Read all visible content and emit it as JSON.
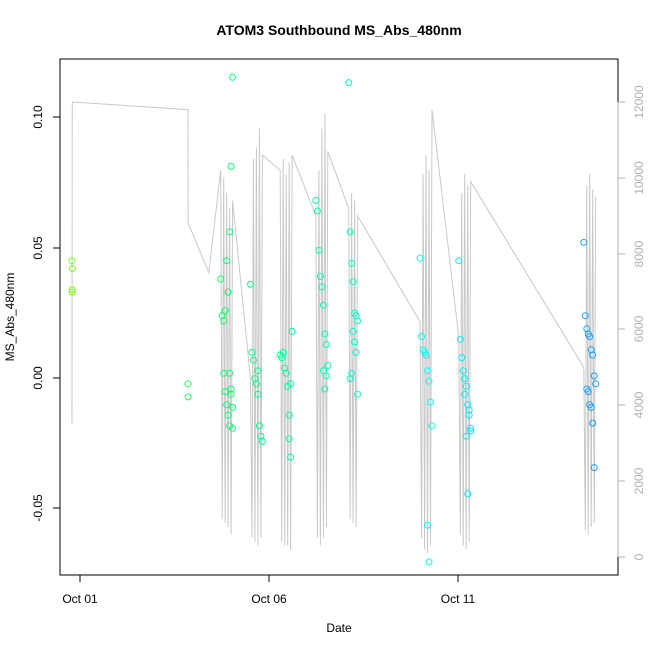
{
  "chart_data": {
    "type": "scatter",
    "title": "ATOM3 Southbound MS_Abs_480nm",
    "xlabel": "Date",
    "ylabel": "MS_Abs_480nm",
    "x_ticks": [
      "Oct 01",
      "Oct 06",
      "Oct 11"
    ],
    "y_ticks": [
      "-0.05",
      "0.00",
      "0.05",
      "0.10"
    ],
    "y_right_ticks": [
      "0",
      "2000",
      "4000",
      "6000",
      "8000",
      "10000",
      "12000"
    ],
    "xlim": [
      "2016-09-30T16:00",
      "2016-10-16T07:00"
    ],
    "ylim": [
      -0.075,
      0.122
    ],
    "ylim_right": [
      0,
      12000
    ],
    "grid": false,
    "colors": {
      "depth_line": "#c8c8c8",
      "axis": "#000000",
      "right_axis": "#b0b0b0",
      "point_gradient": [
        "#7fff00",
        "#00ff7f",
        "#00ffff",
        "#1e90ff"
      ]
    },
    "depth_series": {
      "name": "",
      "points": [
        [
          "2016-10-01T00:00",
          4100
        ],
        [
          "2016-10-01T00:05",
          3500
        ],
        [
          "2016-10-01T00:10",
          11500
        ],
        [
          "2016-10-01T00:15",
          12000
        ],
        [
          "2016-10-04T06:00",
          11800
        ],
        [
          "2016-10-04T06:10",
          8800
        ],
        [
          "2016-10-04T20:00",
          7500
        ],
        [
          "2016-10-05T04:00",
          10200
        ],
        [
          "2016-10-05T05:00",
          1000
        ],
        [
          "2016-10-05T06:00",
          10000
        ],
        [
          "2016-10-05T07:00",
          900
        ],
        [
          "2016-10-05T08:00",
          9600
        ],
        [
          "2016-10-05T09:00",
          800
        ],
        [
          "2016-10-05T10:00",
          9200
        ],
        [
          "2016-10-05T11:00",
          600
        ],
        [
          "2016-10-05T12:00",
          9400
        ],
        [
          "2016-10-06T00:00",
          4700
        ],
        [
          "2016-10-06T01:00",
          500
        ],
        [
          "2016-10-06T02:00",
          10500
        ],
        [
          "2016-10-06T03:00",
          400
        ],
        [
          "2016-10-06T04:00",
          10800
        ],
        [
          "2016-10-06T05:00",
          300
        ],
        [
          "2016-10-06T06:00",
          11300
        ],
        [
          "2016-10-06T07:00",
          500
        ],
        [
          "2016-10-06T08:00",
          10600
        ],
        [
          "2016-10-06T20:00",
          10200
        ],
        [
          "2016-10-06T21:00",
          400
        ],
        [
          "2016-10-06T22:00",
          10500
        ],
        [
          "2016-10-06T23:00",
          300
        ],
        [
          "2016-10-07T00:00",
          10100
        ],
        [
          "2016-10-07T01:00",
          300
        ],
        [
          "2016-10-07T02:00",
          10400
        ],
        [
          "2016-10-07T03:00",
          200
        ],
        [
          "2016-10-07T04:00",
          10600
        ],
        [
          "2016-10-07T20:00",
          9000
        ],
        [
          "2016-10-07T21:00",
          500
        ],
        [
          "2016-10-07T22:00",
          10200
        ],
        [
          "2016-10-07T23:00",
          300
        ],
        [
          "2016-10-08T00:00",
          11300
        ],
        [
          "2016-10-08T01:00",
          500
        ],
        [
          "2016-10-08T02:00",
          11700
        ],
        [
          "2016-10-08T03:00",
          800
        ],
        [
          "2016-10-08T04:00",
          10700
        ],
        [
          "2016-10-08T18:00",
          9200
        ],
        [
          "2016-10-08T19:00",
          1000
        ],
        [
          "2016-10-08T20:00",
          9600
        ],
        [
          "2016-10-08T21:00",
          900
        ],
        [
          "2016-10-08T22:00",
          9400
        ],
        [
          "2016-10-08T23:00",
          800
        ],
        [
          "2016-10-09T00:00",
          9000
        ],
        [
          "2016-10-10T18:00",
          6200
        ],
        [
          "2016-10-10T19:00",
          500
        ],
        [
          "2016-10-10T20:00",
          10100
        ],
        [
          "2016-10-10T21:00",
          200
        ],
        [
          "2016-10-10T22:00",
          10600
        ],
        [
          "2016-10-10T23:00",
          100
        ],
        [
          "2016-10-11T00:00",
          10200
        ],
        [
          "2016-10-11T01:00",
          300
        ],
        [
          "2016-10-11T02:00",
          11800
        ],
        [
          "2016-10-11T20:00",
          5800
        ],
        [
          "2016-10-11T21:00",
          600
        ],
        [
          "2016-10-11T22:00",
          9600
        ],
        [
          "2016-10-11T23:00",
          300
        ],
        [
          "2016-10-12T00:00",
          10100
        ],
        [
          "2016-10-12T01:00",
          200
        ],
        [
          "2016-10-12T02:00",
          9800
        ],
        [
          "2016-10-12T03:00",
          400
        ],
        [
          "2016-10-12T04:00",
          9900
        ],
        [
          "2016-10-15T08:00",
          5000
        ],
        [
          "2016-10-15T09:00",
          700
        ],
        [
          "2016-10-15T10:00",
          9800
        ],
        [
          "2016-10-15T11:00",
          600
        ],
        [
          "2016-10-15T12:00",
          10100
        ],
        [
          "2016-10-15T13:00",
          800
        ],
        [
          "2016-10-15T14:00",
          9700
        ],
        [
          "2016-10-15T15:00",
          900
        ],
        [
          "2016-10-15T16:00",
          9500
        ]
      ]
    },
    "series": [
      {
        "name": "",
        "points": [
          [
            "2016-10-01T00:00",
            0.045
          ],
          [
            "2016-10-01T00:20",
            0.042
          ],
          [
            "2016-10-01T00:10",
            0.034
          ],
          [
            "2016-10-01T00:05",
            0.033
          ],
          [
            "2016-10-04T06:00",
            -0.002
          ],
          [
            "2016-10-04T06:10",
            -0.007
          ],
          [
            "2016-10-05T04:00",
            0.038
          ],
          [
            "2016-10-05T05:00",
            0.024
          ],
          [
            "2016-10-05T06:00",
            0.022
          ],
          [
            "2016-10-05T07:00",
            0.026
          ],
          [
            "2016-10-05T08:00",
            0.045
          ],
          [
            "2016-10-05T09:00",
            0.033
          ],
          [
            "2016-10-05T10:00",
            0.056
          ],
          [
            "2016-10-05T11:00",
            0.081
          ],
          [
            "2016-10-05T12:00",
            0.115
          ],
          [
            "2016-10-05T06:00",
            0.002
          ],
          [
            "2016-10-05T07:00",
            -0.005
          ],
          [
            "2016-10-05T08:00",
            -0.01
          ],
          [
            "2016-10-05T09:00",
            -0.014
          ],
          [
            "2016-10-05T10:00",
            -0.018
          ],
          [
            "2016-10-05T11:00",
            -0.004
          ],
          [
            "2016-10-05T12:00",
            -0.019
          ],
          [
            "2016-10-05T12:00",
            -0.011
          ],
          [
            "2016-10-05T11:00",
            -0.006
          ],
          [
            "2016-10-05T10:00",
            0.002
          ],
          [
            "2016-10-06T00:00",
            0.036
          ],
          [
            "2016-10-06T01:00",
            0.01
          ],
          [
            "2016-10-06T02:00",
            0.007
          ],
          [
            "2016-10-06T03:00",
            0.0
          ],
          [
            "2016-10-06T04:00",
            -0.002
          ],
          [
            "2016-10-06T05:00",
            -0.006
          ],
          [
            "2016-10-06T06:00",
            -0.018
          ],
          [
            "2016-10-06T07:00",
            -0.022
          ],
          [
            "2016-10-06T08:00",
            -0.024
          ],
          [
            "2016-10-06T05:00",
            0.003
          ],
          [
            "2016-10-06T20:00",
            0.009
          ],
          [
            "2016-10-06T21:00",
            0.008
          ],
          [
            "2016-10-06T22:00",
            0.01
          ],
          [
            "2016-10-06T23:00",
            0.004
          ],
          [
            "2016-10-07T00:00",
            0.002
          ],
          [
            "2016-10-07T01:00",
            -0.003
          ],
          [
            "2016-10-07T02:00",
            -0.023
          ],
          [
            "2016-10-07T03:00",
            -0.03
          ],
          [
            "2016-10-07T04:00",
            0.018
          ],
          [
            "2016-10-07T02:00",
            -0.014
          ],
          [
            "2016-10-07T03:00",
            -0.002
          ],
          [
            "2016-10-07T20:00",
            0.068
          ],
          [
            "2016-10-07T21:00",
            0.064
          ],
          [
            "2016-10-07T22:00",
            0.049
          ],
          [
            "2016-10-07T23:00",
            0.039
          ],
          [
            "2016-10-08T00:00",
            0.035
          ],
          [
            "2016-10-08T01:00",
            0.028
          ],
          [
            "2016-10-08T02:00",
            0.017
          ],
          [
            "2016-10-08T03:00",
            0.013
          ],
          [
            "2016-10-08T04:00",
            0.005
          ],
          [
            "2016-10-08T01:00",
            0.003
          ],
          [
            "2016-10-08T02:00",
            -0.004
          ],
          [
            "2016-10-08T03:00",
            0.001
          ],
          [
            "2016-10-08T18:00",
            0.113
          ],
          [
            "2016-10-08T19:00",
            0.056
          ],
          [
            "2016-10-08T20:00",
            0.044
          ],
          [
            "2016-10-08T21:00",
            0.037
          ],
          [
            "2016-10-08T22:00",
            0.025
          ],
          [
            "2016-10-08T23:00",
            0.024
          ],
          [
            "2016-10-09T00:00",
            0.022
          ],
          [
            "2016-10-08T21:00",
            0.018
          ],
          [
            "2016-10-08T22:00",
            0.014
          ],
          [
            "2016-10-08T23:00",
            0.01
          ],
          [
            "2016-10-08T20:00",
            0.002
          ],
          [
            "2016-10-08T19:00",
            0.0
          ],
          [
            "2016-10-09T00:00",
            -0.006
          ]
        ]
      },
      {
        "name": "",
        "points": [
          [
            "2016-10-10T18:00",
            0.046
          ],
          [
            "2016-10-10T19:00",
            0.016
          ],
          [
            "2016-10-10T20:00",
            0.011
          ],
          [
            "2016-10-10T21:00",
            0.01
          ],
          [
            "2016-10-10T22:00",
            0.009
          ],
          [
            "2016-10-10T23:00",
            0.003
          ],
          [
            "2016-10-11T00:00",
            -0.001
          ],
          [
            "2016-10-11T01:00",
            -0.009
          ],
          [
            "2016-10-11T02:00",
            -0.018
          ],
          [
            "2016-10-10T23:00",
            -0.056
          ],
          [
            "2016-10-11T00:00",
            -0.07
          ],
          [
            "2016-10-11T20:00",
            0.045
          ],
          [
            "2016-10-11T21:00",
            0.015
          ],
          [
            "2016-10-11T22:00",
            0.008
          ],
          [
            "2016-10-11T23:00",
            0.003
          ],
          [
            "2016-10-12T00:00",
            0.0
          ],
          [
            "2016-10-12T01:00",
            -0.003
          ],
          [
            "2016-10-12T02:00",
            -0.01
          ],
          [
            "2016-10-12T03:00",
            -0.014
          ],
          [
            "2016-10-12T04:00",
            -0.019
          ],
          [
            "2016-10-12T01:00",
            -0.022
          ],
          [
            "2016-10-12T02:00",
            -0.044
          ],
          [
            "2016-10-12T03:00",
            -0.012
          ],
          [
            "2016-10-12T04:00",
            -0.02
          ],
          [
            "2016-10-12T00:00",
            -0.006
          ]
        ]
      },
      {
        "name": "",
        "points": [
          [
            "2016-10-15T08:00",
            0.052
          ],
          [
            "2016-10-15T09:00",
            0.024
          ],
          [
            "2016-10-15T10:00",
            0.019
          ],
          [
            "2016-10-15T11:00",
            0.017
          ],
          [
            "2016-10-15T12:00",
            0.016
          ],
          [
            "2016-10-15T13:00",
            0.011
          ],
          [
            "2016-10-15T14:00",
            0.009
          ],
          [
            "2016-10-15T15:00",
            0.001
          ],
          [
            "2016-10-15T16:00",
            -0.002
          ],
          [
            "2016-10-15T10:00",
            -0.004
          ],
          [
            "2016-10-15T11:00",
            -0.005
          ],
          [
            "2016-10-15T12:00",
            -0.01
          ],
          [
            "2016-10-15T13:00",
            -0.011
          ],
          [
            "2016-10-15T14:00",
            -0.017
          ],
          [
            "2016-10-15T15:00",
            -0.034
          ]
        ]
      }
    ]
  }
}
